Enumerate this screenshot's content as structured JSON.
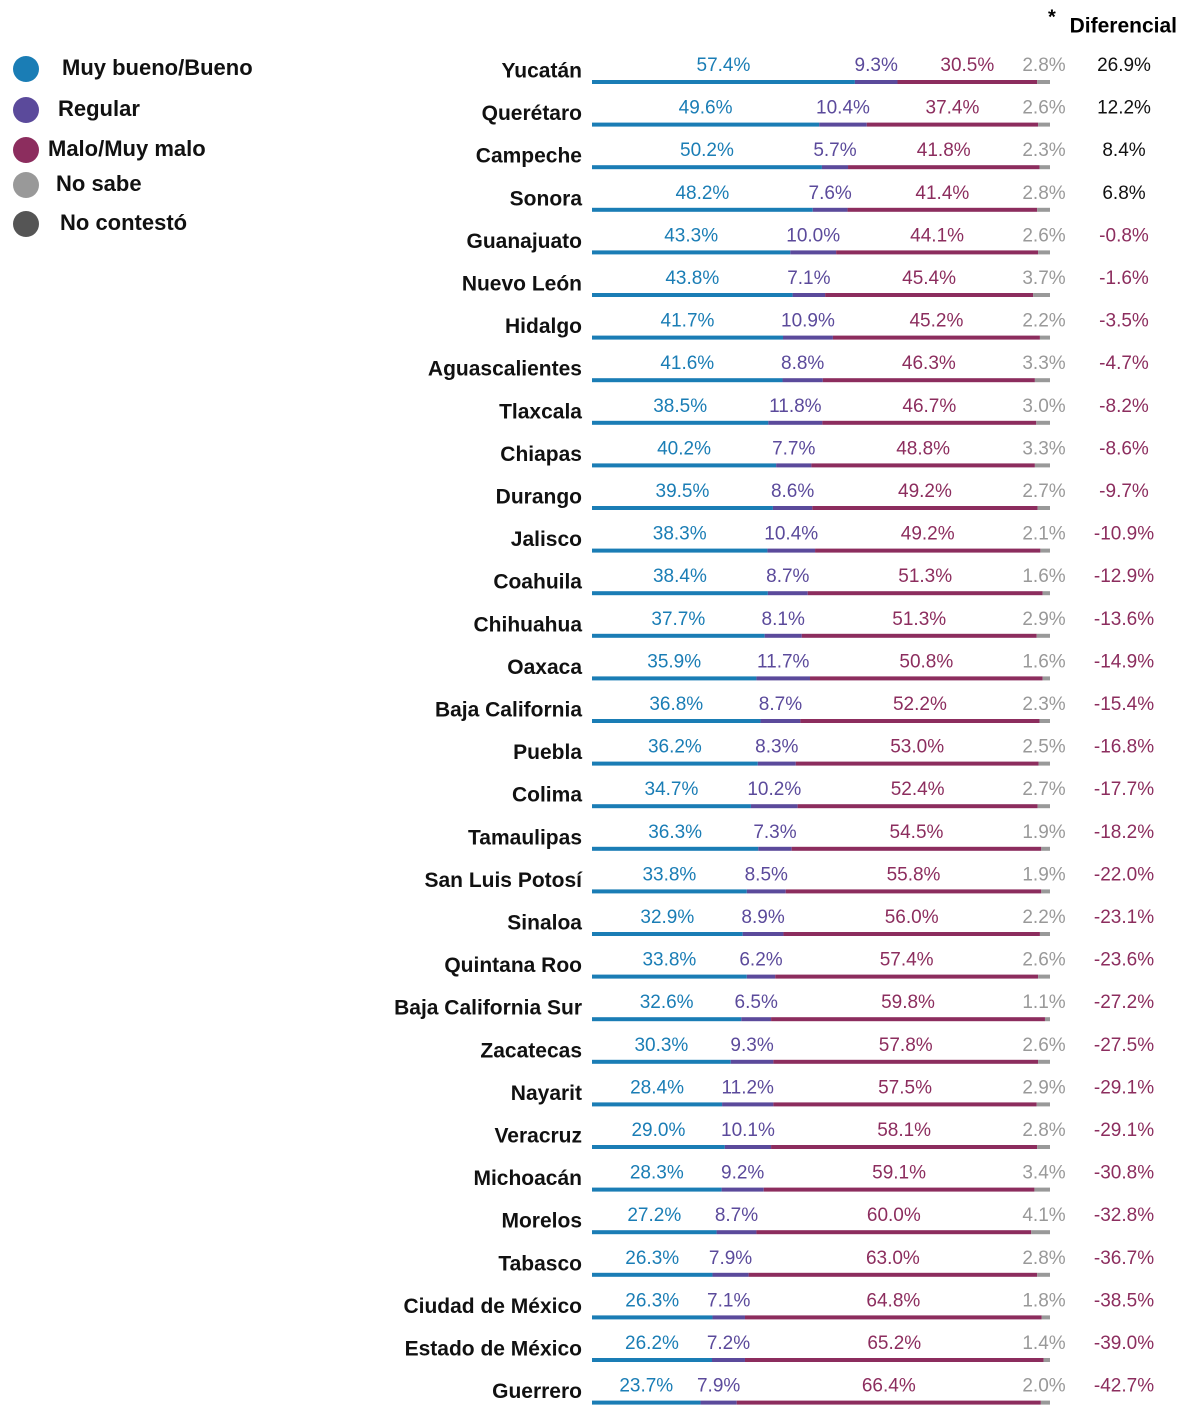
{
  "chart_data": {
    "type": "stacked-bar-horizontal",
    "categories": [
      "Yucatán",
      "Querétaro",
      "Campeche",
      "Sonora",
      "Guanajuato",
      "Nuevo León",
      "Hidalgo",
      "Aguascalientes",
      "Tlaxcala",
      "Chiapas",
      "Durango",
      "Jalisco",
      "Coahuila",
      "Chihuahua",
      "Oaxaca",
      "Baja California",
      "Puebla",
      "Colima",
      "Tamaulipas",
      "San Luis Potosí",
      "Sinaloa",
      "Quintana Roo",
      "Baja California Sur",
      "Zacatecas",
      "Nayarit",
      "Veracruz",
      "Michoacán",
      "Morelos",
      "Tabasco",
      "Ciudad de México",
      "Estado de México",
      "Guerrero"
    ],
    "xlim": [
      0,
      100
    ],
    "series": [
      {
        "name": "Muy bueno/Bueno",
        "color": "#1a7db5",
        "values": [
          57.4,
          49.6,
          50.2,
          48.2,
          43.3,
          43.8,
          41.7,
          41.6,
          38.5,
          40.2,
          39.5,
          38.3,
          38.4,
          37.7,
          35.9,
          36.8,
          36.2,
          34.7,
          36.3,
          33.8,
          32.9,
          33.8,
          32.6,
          30.3,
          28.4,
          29.0,
          28.3,
          27.2,
          26.3,
          26.3,
          26.2,
          23.7
        ],
        "value_labels": [
          "57.4%",
          "49.6%",
          "50.2%",
          "48.2%",
          "43.3%",
          "43.8%",
          "41.7%",
          "41.6%",
          "38.5%",
          "40.2%",
          "39.5%",
          "38.3%",
          "38.4%",
          "37.7%",
          "35.9%",
          "36.8%",
          "36.2%",
          "34.7%",
          "36.3%",
          "33.8%",
          "32.9%",
          "33.8%",
          "32.6%",
          "30.3%",
          "28.4%",
          "29.0%",
          "28.3%",
          "27.2%",
          "26.3%",
          "26.3%",
          "26.2%",
          "23.7%"
        ]
      },
      {
        "name": "Regular",
        "color": "#5b4a9b",
        "values": [
          9.3,
          10.4,
          5.7,
          7.6,
          10.0,
          7.1,
          10.9,
          8.8,
          11.8,
          7.7,
          8.6,
          10.4,
          8.7,
          8.1,
          11.7,
          8.7,
          8.3,
          10.2,
          7.3,
          8.5,
          8.9,
          6.2,
          6.5,
          9.3,
          11.2,
          10.1,
          9.2,
          8.7,
          7.9,
          7.1,
          7.2,
          7.9
        ],
        "value_labels": [
          "9.3%",
          "10.4%",
          "5.7%",
          "7.6%",
          "10.0%",
          "7.1%",
          "10.9%",
          "8.8%",
          "11.8%",
          "7.7%",
          "8.6%",
          "10.4%",
          "8.7%",
          "8.1%",
          "11.7%",
          "8.7%",
          "8.3%",
          "10.2%",
          "7.3%",
          "8.5%",
          "8.9%",
          "6.2%",
          "6.5%",
          "9.3%",
          "11.2%",
          "10.1%",
          "9.2%",
          "8.7%",
          "7.9%",
          "7.1%",
          "7.2%",
          "7.9%"
        ]
      },
      {
        "name": "Malo/Muy malo",
        "color": "#8c2d5e",
        "values": [
          30.5,
          37.4,
          41.8,
          41.4,
          44.1,
          45.4,
          45.2,
          46.3,
          46.7,
          48.8,
          49.2,
          49.2,
          51.3,
          51.3,
          50.8,
          52.2,
          53.0,
          52.4,
          54.5,
          55.8,
          56.0,
          57.4,
          59.8,
          57.8,
          57.5,
          58.1,
          59.1,
          60.0,
          63.0,
          64.8,
          65.2,
          66.4
        ],
        "value_labels": [
          "30.5%",
          "37.4%",
          "41.8%",
          "41.4%",
          "44.1%",
          "45.4%",
          "45.2%",
          "46.3%",
          "46.7%",
          "48.8%",
          "49.2%",
          "49.2%",
          "51.3%",
          "51.3%",
          "50.8%",
          "52.2%",
          "53.0%",
          "52.4%",
          "54.5%",
          "55.8%",
          "56.0%",
          "57.4%",
          "59.8%",
          "57.8%",
          "57.5%",
          "58.1%",
          "59.1%",
          "60.0%",
          "63.0%",
          "64.8%",
          "65.2%",
          "66.4%"
        ]
      },
      {
        "name": "No sabe",
        "color": "#999999",
        "values": [
          2.8,
          2.6,
          2.3,
          2.8,
          2.6,
          3.7,
          2.2,
          3.3,
          3.0,
          3.3,
          2.7,
          2.1,
          1.6,
          2.9,
          1.6,
          2.3,
          2.5,
          2.7,
          1.9,
          1.9,
          2.2,
          2.6,
          1.1,
          2.6,
          2.9,
          2.8,
          3.4,
          4.1,
          2.8,
          1.8,
          1.4,
          2.0
        ],
        "value_labels": [
          "2.8%",
          "2.6%",
          "2.3%",
          "2.8%",
          "2.6%",
          "3.7%",
          "2.2%",
          "3.3%",
          "3.0%",
          "3.3%",
          "2.7%",
          "2.1%",
          "1.6%",
          "2.9%",
          "1.6%",
          "2.3%",
          "2.5%",
          "2.7%",
          "1.9%",
          "1.9%",
          "2.2%",
          "2.6%",
          "1.1%",
          "2.6%",
          "2.9%",
          "2.8%",
          "3.4%",
          "4.1%",
          "2.8%",
          "1.8%",
          "1.4%",
          "2.0%"
        ]
      },
      {
        "name": "No contestó",
        "color": "#555555",
        "values": [
          0,
          0,
          0,
          0,
          0,
          0,
          0,
          0,
          0,
          0,
          0,
          0,
          0,
          0,
          0,
          0,
          0,
          0,
          0,
          0,
          0,
          0,
          0,
          0,
          0,
          0,
          0,
          0,
          0,
          0,
          0,
          0
        ]
      }
    ],
    "differential": {
      "marker": "*",
      "label": "Diferencial",
      "positive_color": "#111111",
      "negative_color": "#8c2d5e",
      "values": [
        26.9,
        12.2,
        8.4,
        6.8,
        -0.8,
        -1.6,
        -3.5,
        -4.7,
        -8.2,
        -8.6,
        -9.7,
        -10.9,
        -12.9,
        -13.6,
        -14.9,
        -15.4,
        -16.8,
        -17.7,
        -18.2,
        -22.0,
        -23.1,
        -23.6,
        -27.2,
        -27.5,
        -29.1,
        -29.1,
        -30.8,
        -32.8,
        -36.7,
        -38.5,
        -39.0,
        -42.7
      ],
      "value_labels": [
        "26.9%",
        "12.2%",
        "8.4%",
        "6.8%",
        "-0.8%",
        "-1.6%",
        "-3.5%",
        "-4.7%",
        "-8.2%",
        "-8.6%",
        "-9.7%",
        "-10.9%",
        "-12.9%",
        "-13.6%",
        "-14.9%",
        "-15.4%",
        "-16.8%",
        "-17.7%",
        "-18.2%",
        "-22.0%",
        "-23.1%",
        "-23.6%",
        "-27.2%",
        "-27.5%",
        "-29.1%",
        "-29.1%",
        "-30.8%",
        "-32.8%",
        "-36.7%",
        "-38.5%",
        "-39.0%",
        "-42.7%"
      ]
    }
  }
}
